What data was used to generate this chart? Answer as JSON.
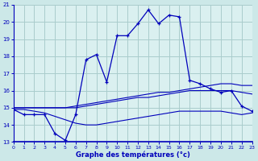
{
  "xlabel": "Graphe des températures (°c)",
  "background_color": "#cce8e8",
  "plot_bg_color": "#daf0f0",
  "line_color": "#0000bb",
  "grid_color": "#aacccc",
  "hours": [
    0,
    1,
    2,
    3,
    4,
    5,
    6,
    7,
    8,
    9,
    10,
    11,
    12,
    13,
    14,
    15,
    16,
    17,
    18,
    19,
    20,
    21,
    22,
    23
  ],
  "temp_main": [
    14.9,
    14.6,
    14.6,
    14.6,
    13.5,
    13.1,
    14.6,
    17.8,
    18.1,
    16.5,
    19.2,
    19.2,
    19.9,
    20.7,
    19.9,
    20.4,
    20.3,
    16.6,
    16.4,
    16.1,
    15.9,
    16.0,
    15.1,
    14.8
  ],
  "temp_high": [
    15.0,
    15.0,
    15.0,
    15.0,
    15.0,
    15.0,
    15.1,
    15.2,
    15.3,
    15.4,
    15.5,
    15.6,
    15.7,
    15.8,
    15.9,
    15.9,
    16.0,
    16.1,
    16.2,
    16.3,
    16.4,
    16.4,
    16.3,
    16.3
  ],
  "temp_mid": [
    15.0,
    15.0,
    15.0,
    15.0,
    15.0,
    15.0,
    15.0,
    15.1,
    15.2,
    15.3,
    15.4,
    15.5,
    15.6,
    15.6,
    15.7,
    15.8,
    15.9,
    16.0,
    16.0,
    16.0,
    16.0,
    16.0,
    15.9,
    15.8
  ],
  "temp_low": [
    14.9,
    14.9,
    14.8,
    14.7,
    14.5,
    14.3,
    14.1,
    14.0,
    14.0,
    14.1,
    14.2,
    14.3,
    14.4,
    14.5,
    14.6,
    14.7,
    14.8,
    14.8,
    14.8,
    14.8,
    14.8,
    14.7,
    14.6,
    14.7
  ],
  "ylim": [
    13,
    21
  ],
  "yticks": [
    13,
    14,
    15,
    16,
    17,
    18,
    19,
    20,
    21
  ],
  "xlim": [
    0,
    23
  ],
  "xticks": [
    0,
    1,
    2,
    3,
    4,
    5,
    6,
    7,
    8,
    9,
    10,
    11,
    12,
    13,
    14,
    15,
    16,
    17,
    18,
    19,
    20,
    21,
    22,
    23
  ]
}
